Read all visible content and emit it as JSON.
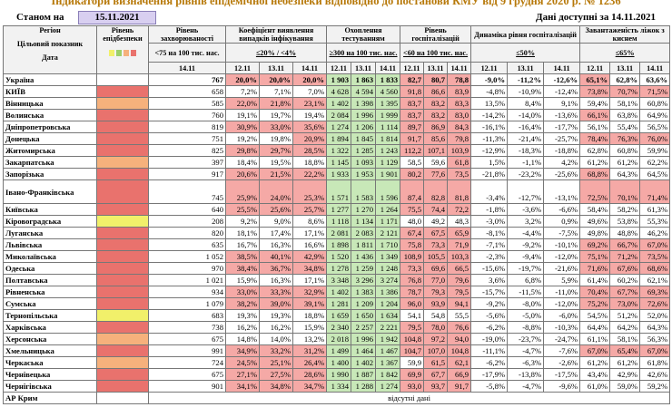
{
  "header": {
    "title": "Індикатори визначення рівнів епідемічної небезпеки відповідно до постанови КМУ від 9 грудня 2020 р. № 1236",
    "as_of_label": "Станом на",
    "as_of_date": "15.11.2021",
    "data_note": "Дані доступні за 14.11.2021"
  },
  "table": {
    "region_head": [
      "Регіон",
      "Цільовий показник",
      "Дата"
    ],
    "level_head": "Рівень епідбезпеки",
    "incidence": {
      "title": "Рівень захворюваності",
      "target": "<75 на 100 тис. нас.",
      "date": "14.11"
    },
    "groups": [
      {
        "title": "Коефіцієнт виявлення випадків інфікування",
        "target": "≤20% / <4%",
        "dates": [
          "12.11",
          "13.11",
          "14.11"
        ]
      },
      {
        "title": "Охоплення тестуванням",
        "target": "≥300 на 100 тис. нас.",
        "dates": [
          "12.11",
          "13.11",
          "14.11"
        ]
      },
      {
        "title": "Рівень госпіталізацій",
        "target": "<60 на 100 тис. нас.",
        "dates": [
          "12.11",
          "13.11",
          "14.11"
        ]
      },
      {
        "title": "Динаміка рівня госпіталізацій",
        "target": "≤50%",
        "dates": [
          "12.11",
          "13.11",
          "14.11"
        ]
      },
      {
        "title": "Завантаженість ліжок з киснем",
        "target": "≤65%",
        "dates": [
          "12.11",
          "13.11",
          "14.11"
        ]
      }
    ],
    "palette": {
      "r": "#f5a9a6",
      "g": "#c8e8b8",
      "n": "#ffffff",
      "red": "#e9726d",
      "orange": "#f6b17c",
      "yellow": "#f1f06a"
    },
    "rows": [
      {
        "region": "Україна",
        "values": [
          "767",
          "20,0%",
          "20,0%",
          "20,0%",
          "1 903",
          "1 863",
          "1 833",
          "82,7",
          "80,7",
          "78,8",
          "-9,0%",
          "-11,2%",
          "-12,6%",
          "65,1%",
          "62,8%",
          "63,6%"
        ],
        "fill": "nrrrgggrrrnnnrnn"
      },
      {
        "region": "КИЇВ",
        "level": "red",
        "values": [
          "658",
          "7,2%",
          "7,1%",
          "7,0%",
          "4 628",
          "4 594",
          "4 560",
          "91,8",
          "86,6",
          "83,9",
          "-4,8%",
          "-10,9%",
          "-12,4%",
          "73,8%",
          "70,7%",
          "71,5%"
        ],
        "fill": "nnnngggrrrnnnrrr"
      },
      {
        "region": "Вінницька",
        "level": "orange",
        "values": [
          "585",
          "22,0%",
          "21,8%",
          "23,1%",
          "1 402",
          "1 398",
          "1 395",
          "83,7",
          "83,2",
          "83,3",
          "13,5%",
          "8,4%",
          "9,1%",
          "59,4%",
          "58,1%",
          "60,8%"
        ],
        "fill": "nrrrgggrrrnnnnnn"
      },
      {
        "region": "Волинська",
        "level": "red",
        "values": [
          "760",
          "19,1%",
          "19,7%",
          "19,4%",
          "2 084",
          "1 996",
          "1 999",
          "83,7",
          "83,2",
          "83,0",
          "-14,2%",
          "-14,0%",
          "-13,6%",
          "66,1%",
          "63,8%",
          "64,9%"
        ],
        "fill": "nnnngggrrrnnnrnn"
      },
      {
        "region": "Дніпропетровська",
        "level": "red",
        "values": [
          "819",
          "30,9%",
          "33,0%",
          "35,6%",
          "1 274",
          "1 206",
          "1 114",
          "89,7",
          "86,9",
          "84,3",
          "-16,1%",
          "-16,4%",
          "-17,7%",
          "56,1%",
          "55,4%",
          "56,5%"
        ],
        "fill": "nrrrgggrrrnnnnnn"
      },
      {
        "region": "Донецька",
        "level": "red",
        "values": [
          "751",
          "19,2%",
          "19,8%",
          "20,9%",
          "1 894",
          "1 845",
          "1 814",
          "91,7",
          "85,6",
          "79,8",
          "-11,3%",
          "-21,4%",
          "-25,7%",
          "78,4%",
          "76,3%",
          "76,0%"
        ],
        "fill": "nnnrgggrrrnnnrrr"
      },
      {
        "region": "Житомирська",
        "level": "red",
        "values": [
          "825",
          "29,8%",
          "29,7%",
          "28,5%",
          "1 322",
          "1 285",
          "1 243",
          "112,2",
          "107,1",
          "103,9",
          "-12,9%",
          "-18,3%",
          "-18,8%",
          "62,8%",
          "60,8%",
          "59,9%"
        ],
        "fill": "nrrrgggrrrnnnnnn"
      },
      {
        "region": "Закарпатська",
        "level": "orange",
        "values": [
          "397",
          "18,4%",
          "19,5%",
          "18,8%",
          "1 145",
          "1 093",
          "1 129",
          "58,5",
          "59,6",
          "61,8",
          "1,5%",
          "-1,1%",
          "4,2%",
          "61,2%",
          "61,2%",
          "62,2%"
        ],
        "fill": "nnnngggnnrnnnnnn"
      },
      {
        "region": "Запорізька",
        "level": "red",
        "values": [
          "917",
          "20,6%",
          "21,5%",
          "22,2%",
          "1 933",
          "1 953",
          "1 901",
          "80,2",
          "77,6",
          "73,5",
          "-21,8%",
          "-23,2%",
          "-25,6%",
          "68,8%",
          "64,3%",
          "64,5%"
        ],
        "fill": "nrrrgggrrrnnnrnn"
      },
      {
        "region": "Івано-Франківська",
        "level": "red",
        "tall": true,
        "values": [
          "745",
          "25,9%",
          "24,0%",
          "25,3%",
          "1 571",
          "1 583",
          "1 596",
          "87,4",
          "82,8",
          "81,8",
          "-3,4%",
          "-12,7%",
          "-13,1%",
          "72,5%",
          "70,1%",
          "71,4%"
        ],
        "fill": "nrrrgggrrrnnnrrr"
      },
      {
        "region": "Київська",
        "level": "red",
        "values": [
          "640",
          "25,5%",
          "25,6%",
          "25,7%",
          "1 277",
          "1 270",
          "1 264",
          "75,5",
          "74,4",
          "72,2",
          "-1,8%",
          "-3,6%",
          "-6,6%",
          "58,4%",
          "58,2%",
          "61,3%"
        ],
        "fill": "nrrrgggrrrnnnnnn"
      },
      {
        "region": "Кіровоградська",
        "level": "yellow",
        "values": [
          "208",
          "9,2%",
          "9,0%",
          "8,6%",
          "1 118",
          "1 134",
          "1 171",
          "48,0",
          "49,2",
          "48,3",
          "-3,0%",
          "3,2%",
          "0,9%",
          "49,6%",
          "53,8%",
          "55,3%"
        ],
        "fill": "nnnngggnnnnnnnnn"
      },
      {
        "region": "Луганська",
        "level": "red",
        "values": [
          "820",
          "18,1%",
          "17,4%",
          "17,1%",
          "2 081",
          "2 083",
          "2 121",
          "67,4",
          "67,5",
          "65,9",
          "-8,1%",
          "-4,4%",
          "-7,5%",
          "49,8%",
          "48,8%",
          "46,2%"
        ],
        "fill": "nnnngggrrrnnnnnn"
      },
      {
        "region": "Львівська",
        "level": "red",
        "values": [
          "635",
          "16,7%",
          "16,3%",
          "16,6%",
          "1 898",
          "1 811",
          "1 710",
          "75,8",
          "73,3",
          "71,9",
          "-7,1%",
          "-9,2%",
          "-10,1%",
          "69,2%",
          "66,7%",
          "67,0%"
        ],
        "fill": "nnnngggrrrnnnrrr"
      },
      {
        "region": "Миколаївська",
        "level": "red",
        "values": [
          "1 052",
          "38,5%",
          "40,1%",
          "42,9%",
          "1 520",
          "1 436",
          "1 349",
          "108,9",
          "105,5",
          "103,3",
          "-2,3%",
          "-9,4%",
          "-12,0%",
          "75,1%",
          "71,2%",
          "73,5%"
        ],
        "fill": "nrrrgggrrrnnnrrr"
      },
      {
        "region": "Одеська",
        "level": "red",
        "values": [
          "970",
          "38,4%",
          "36,7%",
          "34,8%",
          "1 278",
          "1 259",
          "1 248",
          "73,3",
          "69,6",
          "66,5",
          "-15,6%",
          "-19,7%",
          "-21,6%",
          "71,6%",
          "67,6%",
          "68,6%"
        ],
        "fill": "nrrrgggrrrnnnrrr"
      },
      {
        "region": "Полтавська",
        "level": "red",
        "values": [
          "1 021",
          "15,9%",
          "16,3%",
          "17,1%",
          "3 348",
          "3 296",
          "3 274",
          "76,8",
          "77,0",
          "79,6",
          "3,6%",
          "6,8%",
          "5,9%",
          "61,4%",
          "60,2%",
          "62,1%"
        ],
        "fill": "nnnngggrrrnnnnnn"
      },
      {
        "region": "Рівненська",
        "level": "red",
        "values": [
          "934",
          "33,0%",
          "33,3%",
          "32,9%",
          "1 402",
          "1 383",
          "1 386",
          "78,7",
          "79,3",
          "79,5",
          "-15,7%",
          "-11,5%",
          "-11,0%",
          "70,4%",
          "67,7%",
          "69,3%"
        ],
        "fill": "nrrrgggrrrnnnrrr"
      },
      {
        "region": "Сумська",
        "level": "red",
        "values": [
          "1 079",
          "38,2%",
          "39,0%",
          "39,1%",
          "1 281",
          "1 209",
          "1 204",
          "96,0",
          "93,9",
          "94,1",
          "-9,2%",
          "-8,0%",
          "-12,0%",
          "75,2%",
          "73,0%",
          "72,6%"
        ],
        "fill": "nrrrgggrrrnnnrrr"
      },
      {
        "region": "Тернопільська",
        "level": "yellow",
        "values": [
          "683",
          "19,3%",
          "19,3%",
          "18,8%",
          "1 659",
          "1 650",
          "1 634",
          "54,1",
          "54,8",
          "55,5",
          "-5,6%",
          "-5,0%",
          "-6,0%",
          "54,5%",
          "51,2%",
          "52,0%"
        ],
        "fill": "nnnngggnnnnnnnnn"
      },
      {
        "region": "Харківська",
        "level": "red",
        "values": [
          "738",
          "16,2%",
          "16,2%",
          "15,9%",
          "2 340",
          "2 257",
          "2 221",
          "79,5",
          "78,0",
          "76,6",
          "-6,2%",
          "-8,8%",
          "-10,3%",
          "64,4%",
          "64,2%",
          "64,3%"
        ],
        "fill": "nnnngggrrrnnnnnn"
      },
      {
        "region": "Херсонська",
        "level": "orange",
        "values": [
          "675",
          "14,8%",
          "14,0%",
          "13,2%",
          "2 018",
          "1 996",
          "1 942",
          "104,8",
          "97,2",
          "94,0",
          "-19,0%",
          "-23,7%",
          "-24,7%",
          "61,1%",
          "58,1%",
          "56,3%"
        ],
        "fill": "nnnngggrrrnnnnnn"
      },
      {
        "region": "Хмельницька",
        "level": "red",
        "values": [
          "991",
          "34,9%",
          "33,2%",
          "31,2%",
          "1 499",
          "1 464",
          "1 467",
          "104,7",
          "107,0",
          "104,8",
          "-11,1%",
          "-4,7%",
          "-7,6%",
          "67,0%",
          "65,4%",
          "67,0%"
        ],
        "fill": "nrrrgggrrrnnnrrr"
      },
      {
        "region": "Черкаська",
        "level": "orange",
        "values": [
          "724",
          "24,5%",
          "25,1%",
          "26,4%",
          "1 400",
          "1 402",
          "1 367",
          "59,9",
          "61,5",
          "62,1",
          "-6,2%",
          "-6,3%",
          "-2,6%",
          "61,2%",
          "61,2%",
          "61,8%"
        ],
        "fill": "nrrrgggnrrnnnnnn"
      },
      {
        "region": "Чернівецька",
        "level": "red",
        "values": [
          "675",
          "27,1%",
          "27,5%",
          "28,6%",
          "1 990",
          "1 887",
          "1 842",
          "69,9",
          "67,7",
          "66,9",
          "-17,9%",
          "-13,8%",
          "-17,5%",
          "43,4%",
          "42,9%",
          "42,6%"
        ],
        "fill": "nrrrgggrrrnnnnnn"
      },
      {
        "region": "Чернігівська",
        "level": "red",
        "values": [
          "901",
          "34,1%",
          "34,8%",
          "34,7%",
          "1 334",
          "1 288",
          "1 274",
          "93,0",
          "93,7",
          "91,7",
          "-5,8%",
          "-4,7%",
          "-9,6%",
          "61,0%",
          "59,0%",
          "59,2%"
        ],
        "fill": "nrrrgggrrrnnnnnn"
      }
    ],
    "missing": {
      "region": "АР Крим",
      "note": "відсутні дані"
    }
  }
}
